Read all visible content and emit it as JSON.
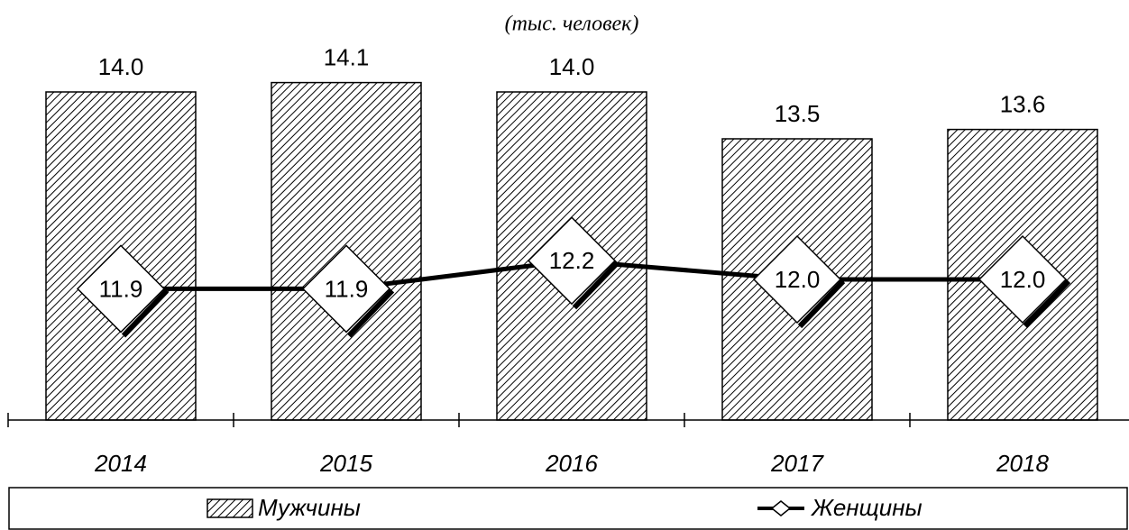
{
  "chart_data": {
    "type": "bar-line",
    "subtitle": "(тыс. человек)",
    "categories": [
      "2014",
      "2015",
      "2016",
      "2017",
      "2018"
    ],
    "series": [
      {
        "name": "Мужчины",
        "type": "bar",
        "color": "#000000",
        "values": [
          14.0,
          14.1,
          14.0,
          13.5,
          13.6
        ],
        "value_labels": [
          "14.0",
          "14.1",
          "14.0",
          "13.5",
          "13.6"
        ]
      },
      {
        "name": "Женщины",
        "type": "line",
        "color": "#000000",
        "values": [
          11.9,
          11.9,
          12.2,
          12.0,
          12.0
        ],
        "value_labels": [
          "11.9",
          "11.9",
          "12.2",
          "12.0",
          "12.0"
        ]
      }
    ],
    "ylim": [
      10.5,
      14.5
    ]
  }
}
